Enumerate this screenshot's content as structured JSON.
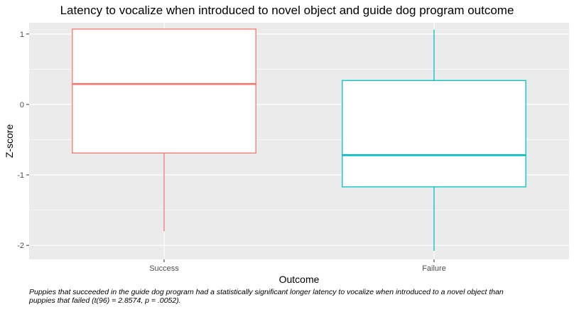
{
  "chart_data": {
    "type": "boxplot",
    "title": "Latency to vocalize when introduced to novel object and guide dog program outcome",
    "xlabel": "Outcome",
    "ylabel": "Z-score",
    "categories": [
      "Success",
      "Failure"
    ],
    "ylim": [
      -2.2,
      1.16
    ],
    "yticks": [
      -2,
      -1,
      0,
      1
    ],
    "ytick_labels": [
      "-2",
      "-1",
      "0",
      "1"
    ],
    "grid": true,
    "series": [
      {
        "name": "Success",
        "color": "#F8766D",
        "whisker_low": -1.8,
        "q1": -0.69,
        "median": 0.29,
        "q3": 1.07,
        "whisker_high": 1.07
      },
      {
        "name": "Failure",
        "color": "#00BFC4",
        "whisker_low": -2.08,
        "q1": -1.17,
        "median": -0.72,
        "q3": 0.34,
        "whisker_high": 1.06
      }
    ],
    "caption": "Puppies that succeeded in the guide dog program had a statistically significant longer latency to vocalize when introduced to a novel object than puppies that failed (t(96) = 2.8574, p = .0052)."
  },
  "colors": {
    "panel_background": "#EBEBEB",
    "grid_major": "#FFFFFF",
    "tick_text": "#4D4D4D"
  }
}
